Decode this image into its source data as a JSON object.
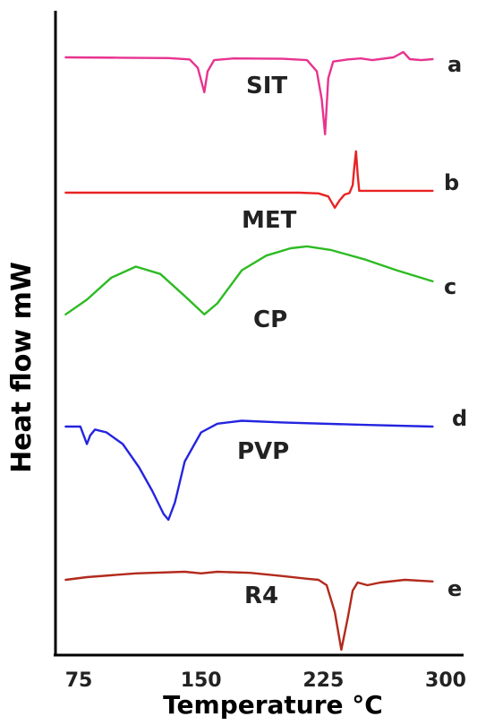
{
  "chart_data": {
    "type": "line",
    "xlabel": "Temperature °C",
    "ylabel": "Heat flow  mW",
    "xlim": [
      65,
      305
    ],
    "x_ticks": [
      "75",
      "150",
      "225",
      "300"
    ],
    "legend": "curve labels at right end and inline names",
    "series": [
      {
        "name": "SIT",
        "letter": "a",
        "color": "#e8338f",
        "points": [
          [
            67,
            0
          ],
          [
            100,
            0.1
          ],
          [
            130,
            0.2
          ],
          [
            143,
            0.6
          ],
          [
            148,
            3
          ],
          [
            152,
            10
          ],
          [
            154,
            4
          ],
          [
            158,
            0.8
          ],
          [
            170,
            0.3
          ],
          [
            200,
            0.4
          ],
          [
            215,
            0.8
          ],
          [
            221,
            4
          ],
          [
            224,
            12
          ],
          [
            226,
            22
          ],
          [
            228,
            6
          ],
          [
            231,
            1.2
          ],
          [
            240,
            0.6
          ],
          [
            248,
            0.3
          ],
          [
            255,
            0.8
          ],
          [
            268,
            0
          ],
          [
            274,
            -1.5
          ],
          [
            278,
            0.5
          ],
          [
            285,
            0.8
          ],
          [
            292,
            0.5
          ]
        ]
      },
      {
        "name": "MET",
        "letter": "b",
        "color": "#e82323",
        "points": [
          [
            67,
            0
          ],
          [
            150,
            0
          ],
          [
            210,
            0
          ],
          [
            222,
            0.4
          ],
          [
            228,
            2
          ],
          [
            232,
            8
          ],
          [
            235,
            4
          ],
          [
            238,
            1
          ],
          [
            241,
            0.2
          ],
          [
            243,
            -4
          ],
          [
            244,
            -14
          ],
          [
            245,
            -22
          ],
          [
            246,
            -10
          ],
          [
            247,
            -1
          ],
          [
            255,
            -1
          ],
          [
            270,
            -1
          ],
          [
            292,
            -1
          ]
        ]
      },
      {
        "name": "CP",
        "letter": "c",
        "color": "#2dbb22",
        "points": [
          [
            67,
            8
          ],
          [
            80,
            4
          ],
          [
            95,
            -2
          ],
          [
            110,
            -5
          ],
          [
            125,
            -3
          ],
          [
            140,
            3
          ],
          [
            152,
            8
          ],
          [
            160,
            5
          ],
          [
            175,
            -4
          ],
          [
            190,
            -8
          ],
          [
            205,
            -10
          ],
          [
            215,
            -10.5
          ],
          [
            230,
            -9.5
          ],
          [
            250,
            -7
          ],
          [
            270,
            -4
          ],
          [
            292,
            -1
          ]
        ]
      },
      {
        "name": "PVP",
        "letter": "d",
        "color": "#2424e0",
        "points": [
          [
            67,
            0
          ],
          [
            76,
            0
          ],
          [
            78,
            1.5
          ],
          [
            80,
            3
          ],
          [
            82,
            1.5
          ],
          [
            85,
            0.5
          ],
          [
            92,
            1
          ],
          [
            102,
            3
          ],
          [
            112,
            7
          ],
          [
            120,
            11
          ],
          [
            127,
            15
          ],
          [
            130,
            16
          ],
          [
            134,
            13
          ],
          [
            140,
            6
          ],
          [
            150,
            1
          ],
          [
            160,
            -0.5
          ],
          [
            175,
            -1
          ],
          [
            200,
            -0.7
          ],
          [
            250,
            -0.3
          ],
          [
            292,
            0
          ]
        ]
      },
      {
        "name": "R4",
        "letter": "e",
        "color": "#b22a1c",
        "points": [
          [
            67,
            0
          ],
          [
            80,
            -0.5
          ],
          [
            110,
            -1.2
          ],
          [
            140,
            -1.5
          ],
          [
            150,
            -1.2
          ],
          [
            160,
            -1.5
          ],
          [
            180,
            -1.3
          ],
          [
            200,
            -0.7
          ],
          [
            215,
            -0.2
          ],
          [
            222,
            0
          ],
          [
            227,
            1
          ],
          [
            232,
            6
          ],
          [
            236,
            13
          ],
          [
            240,
            7
          ],
          [
            243,
            2
          ],
          [
            246,
            0.5
          ],
          [
            252,
            1
          ],
          [
            260,
            0.5
          ],
          [
            275,
            0
          ],
          [
            292,
            0.3
          ]
        ]
      }
    ]
  }
}
